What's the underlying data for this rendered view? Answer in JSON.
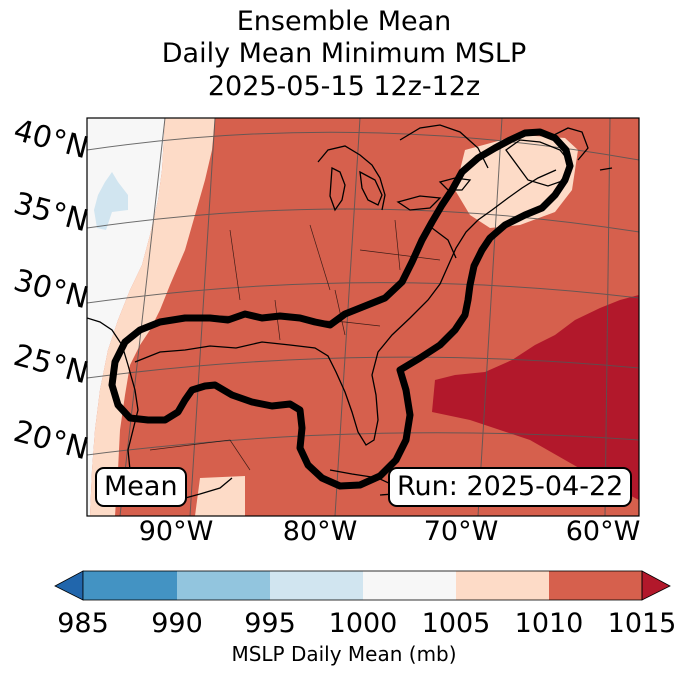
{
  "title": {
    "line1": "Ensemble Mean",
    "line2": "Daily Mean Minimum MSLP",
    "line3": "2025-05-15 12z-12z"
  },
  "map": {
    "lat_labels": [
      "40°N",
      "35°N",
      "30°N",
      "25°N",
      "20°N"
    ],
    "lon_labels": [
      "90°W",
      "80°W",
      "70°W",
      "60°W"
    ],
    "mean_box": "Mean",
    "run_box": "Run: 2025-04-22",
    "fill_colors": {
      "985_990": "#4393c3",
      "990_995": "#92c5de",
      "995_1000": "#d1e5f0",
      "1000_1005": "#f7f7f7",
      "1005_1010": "#fddbc7",
      "1010_1015": "#d6604d",
      "above_1015": "#b2182b"
    }
  },
  "colorbar": {
    "ticks": [
      "985",
      "990",
      "995",
      "1000",
      "1005",
      "1010",
      "1015"
    ],
    "label": "MSLP Daily Mean (mb)",
    "colors": [
      "#2166ac",
      "#4393c3",
      "#92c5de",
      "#d1e5f0",
      "#f7f7f7",
      "#fddbc7",
      "#d6604d",
      "#b2182b"
    ]
  }
}
